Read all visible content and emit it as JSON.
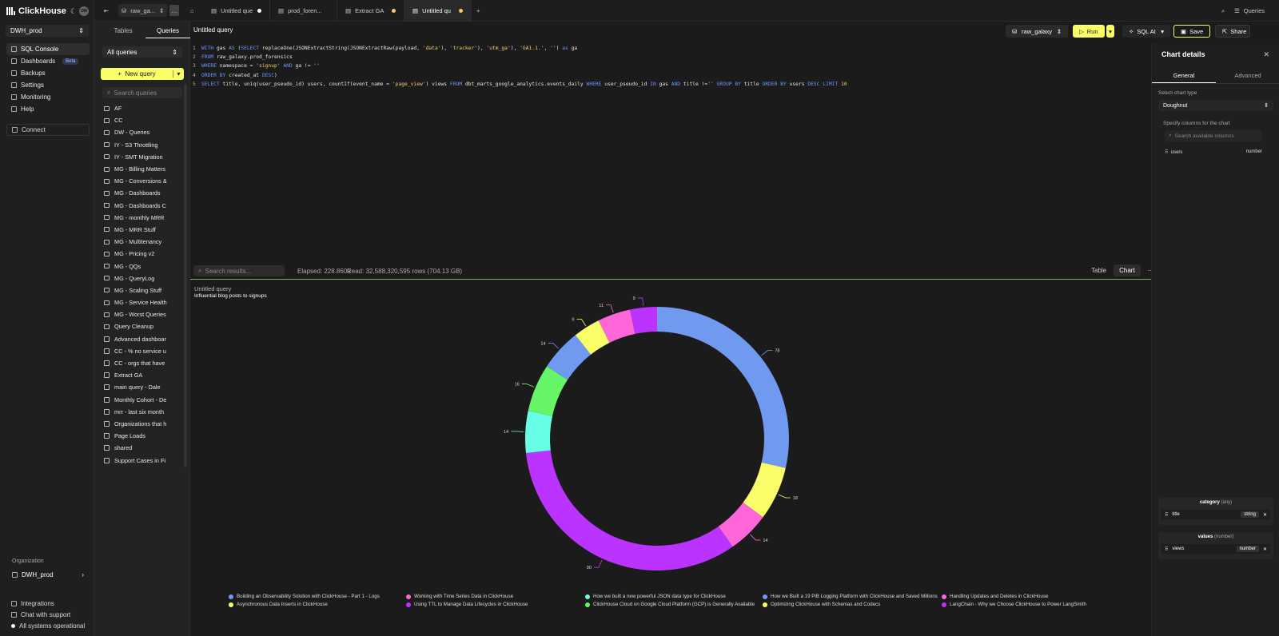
{
  "app": {
    "name": "ClickHouse",
    "avatar_initials": "DM",
    "service": "DWH_prod"
  },
  "nav": {
    "items": [
      {
        "label": "SQL Console",
        "icon": "terminal-icon",
        "active": true
      },
      {
        "label": "Dashboards",
        "icon": "dashboard-icon",
        "badge": "Beta"
      },
      {
        "label": "Backups",
        "icon": "backup-icon"
      },
      {
        "label": "Settings",
        "icon": "settings-icon"
      },
      {
        "label": "Monitoring",
        "icon": "monitoring-icon"
      },
      {
        "label": "Help",
        "icon": "help-icon"
      }
    ],
    "connect": "Connect",
    "org_label": "Organization",
    "org_name": "DWH_prod",
    "bottom": {
      "integrations": "Integrations",
      "support": "Chat with support",
      "status": "All systems operational"
    }
  },
  "sidebar": {
    "tabs": [
      "Tables",
      "Queries"
    ],
    "filter": "All queries",
    "new_query": "New query",
    "search_placeholder": "Search queries",
    "queries": [
      {
        "name": "AF",
        "type": "folder"
      },
      {
        "name": "CC",
        "type": "folder"
      },
      {
        "name": "DW - Queries",
        "type": "folder"
      },
      {
        "name": "IY - S3 Throttling",
        "type": "folder"
      },
      {
        "name": "IY - SMT Migration",
        "type": "folder"
      },
      {
        "name": "MG - Billing Matters",
        "type": "folder"
      },
      {
        "name": "MG - Conversions &",
        "type": "folder"
      },
      {
        "name": "MG - Dashboards",
        "type": "folder"
      },
      {
        "name": "MG - Dashboards C",
        "type": "folder"
      },
      {
        "name": "MG - monthly MRR",
        "type": "folder"
      },
      {
        "name": "MG - MRR Stuff",
        "type": "folder"
      },
      {
        "name": "MG - Multitenancy",
        "type": "folder"
      },
      {
        "name": "MG - Pricing v2",
        "type": "folder"
      },
      {
        "name": "MG - QQs",
        "type": "folder"
      },
      {
        "name": "MG - QueryLog",
        "type": "folder"
      },
      {
        "name": "MG - Scaling Stuff",
        "type": "folder"
      },
      {
        "name": "MG - Service Health",
        "type": "folder"
      },
      {
        "name": "MG - Worst Queries",
        "type": "folder"
      },
      {
        "name": "Query Cleanup",
        "type": "folder"
      },
      {
        "name": "Advanced dashboar",
        "type": "file"
      },
      {
        "name": "CC - % no service u",
        "type": "file"
      },
      {
        "name": "CC - orgs that have",
        "type": "file"
      },
      {
        "name": "Extract GA",
        "type": "file"
      },
      {
        "name": "main query - Dale",
        "type": "file"
      },
      {
        "name": "Monthly Cohort - De",
        "type": "file"
      },
      {
        "name": "mrr - last six month",
        "type": "file"
      },
      {
        "name": "Organizations that h",
        "type": "file"
      },
      {
        "name": "Page Loads",
        "type": "file"
      },
      {
        "name": "shared",
        "type": "file"
      },
      {
        "name": "Support Cases in Fi",
        "type": "file"
      }
    ]
  },
  "topbar": {
    "db_short": "raw_ga...",
    "tabs": [
      {
        "label": "Untitled que",
        "modified": "#ffffff"
      },
      {
        "label": "prod_foren...",
        "modified": ""
      },
      {
        "label": "Extract GA",
        "modified": "#f5c96a"
      },
      {
        "label": "Untitled qu",
        "modified": "#f5c96a",
        "active": true
      }
    ],
    "right_label": "Queries"
  },
  "editor": {
    "title": "Untitled query",
    "database": "raw_galaxy",
    "run": "Run",
    "ai": "SQL AI",
    "save": "Save",
    "share": "Share",
    "lines": [
      [
        {
          "t": "WITH ",
          "k": "kw"
        },
        {
          "t": "gas "
        },
        {
          "t": "AS ",
          "k": "kw"
        },
        {
          "t": "("
        },
        {
          "t": "SELECT ",
          "k": "kw"
        },
        {
          "t": "replaceOne(JSONExtractString(JSONExtractRaw(payload, "
        },
        {
          "t": "'data'",
          "k": "st"
        },
        {
          "t": "), "
        },
        {
          "t": "'tracker'",
          "k": "st"
        },
        {
          "t": "), "
        },
        {
          "t": "'utm_ga'",
          "k": "st"
        },
        {
          "t": "), "
        },
        {
          "t": "'GA1.1.'",
          "k": "st"
        },
        {
          "t": ", "
        },
        {
          "t": "''",
          "k": "st"
        },
        {
          "t": ") "
        },
        {
          "t": "as ",
          "k": "kw"
        },
        {
          "t": "ga"
        }
      ],
      [
        {
          "t": "FROM ",
          "k": "kw"
        },
        {
          "t": "raw_galaxy.prod_forensics"
        }
      ],
      [
        {
          "t": "WHERE ",
          "k": "kw"
        },
        {
          "t": "namespace = "
        },
        {
          "t": "'signup' ",
          "k": "st"
        },
        {
          "t": "AND ",
          "k": "kw"
        },
        {
          "t": "ga != "
        },
        {
          "t": "''",
          "k": "st"
        }
      ],
      [
        {
          "t": "ORDER BY ",
          "k": "kw"
        },
        {
          "t": "created_at "
        },
        {
          "t": "DESC",
          "k": "kw"
        },
        {
          "t": ")"
        }
      ],
      [
        {
          "t": "SELECT ",
          "k": "kw"
        },
        {
          "t": "title, uniq(user_pseudo_id) users, countIf(event_name = "
        },
        {
          "t": "'page_view'",
          "k": "st"
        },
        {
          "t": ") views "
        },
        {
          "t": "FROM ",
          "k": "kw"
        },
        {
          "t": "dbt_marts_google_analytics.events_daily "
        },
        {
          "t": "WHERE ",
          "k": "kw"
        },
        {
          "t": "user_pseudo_id "
        },
        {
          "t": "IN ",
          "k": "kw"
        },
        {
          "t": "gas "
        },
        {
          "t": "AND ",
          "k": "kw"
        },
        {
          "t": "title !="
        },
        {
          "t": "'' ",
          "k": "st"
        },
        {
          "t": "GROUP BY ",
          "k": "kw"
        },
        {
          "t": "title "
        },
        {
          "t": "ORDER BY ",
          "k": "kw"
        },
        {
          "t": "users "
        },
        {
          "t": "DESC LIMIT ",
          "k": "kw"
        },
        {
          "t": "10",
          "k": "st"
        }
      ]
    ]
  },
  "results": {
    "search_placeholder": "Search results...",
    "elapsed": "Elapsed: 228.860s",
    "read": "Read: 32,588,320,595 rows (704.13 GB)",
    "tabs": [
      "Table",
      "Chart"
    ],
    "active_tab": "Chart"
  },
  "chart_data": {
    "type": "pie",
    "variant": "doughnut",
    "title": "Untitled query",
    "subtitle": "Influential blog posts to signups",
    "categories": [
      "Building an Observability Solution with ClickHouse - Part 1 - Logs",
      "Asynchronous Data Inserts in ClickHouse",
      "Working with Time Series Data in ClickHouse",
      "Using TTL to Manage Data Lifecycles in ClickHouse",
      "How we built a new powerful JSON data type for ClickHouse",
      "ClickHouse Cloud on Google Cloud Platform (GCP) is Generally Available",
      "How we Built a 19 PiB Logging Platform with ClickHouse and Saved Millions",
      "Optimizing ClickHouse with Schemas and Codecs",
      "Handling Updates and Deletes in ClickHouse",
      "LangChain - Why we Choose ClickHouse to Power LangSmith"
    ],
    "values": [
      78,
      18,
      14,
      90,
      14,
      16,
      14,
      9,
      11,
      9
    ],
    "colors": [
      "#7099f0",
      "#faff69",
      "#ff66d8",
      "#bb33ff",
      "#66ffe6",
      "#66f566",
      "#7099f0",
      "#faff69",
      "#ff66d8",
      "#bb33ff"
    ],
    "legend_position": "bottom"
  },
  "panel": {
    "title": "Chart details",
    "tabs": [
      "General",
      "Advanced"
    ],
    "chart_type_label": "Select chart type",
    "chart_type": "Doughnut",
    "columns_label": "Specify columns for the chart",
    "columns_search": "Search available columns",
    "available": [
      {
        "name": "users",
        "type": "number"
      }
    ],
    "category": {
      "label": "category",
      "hint": "(any)",
      "column": "title",
      "type": "string"
    },
    "values": {
      "label": "values",
      "hint": "(number)",
      "column": "views",
      "type": "number"
    }
  }
}
